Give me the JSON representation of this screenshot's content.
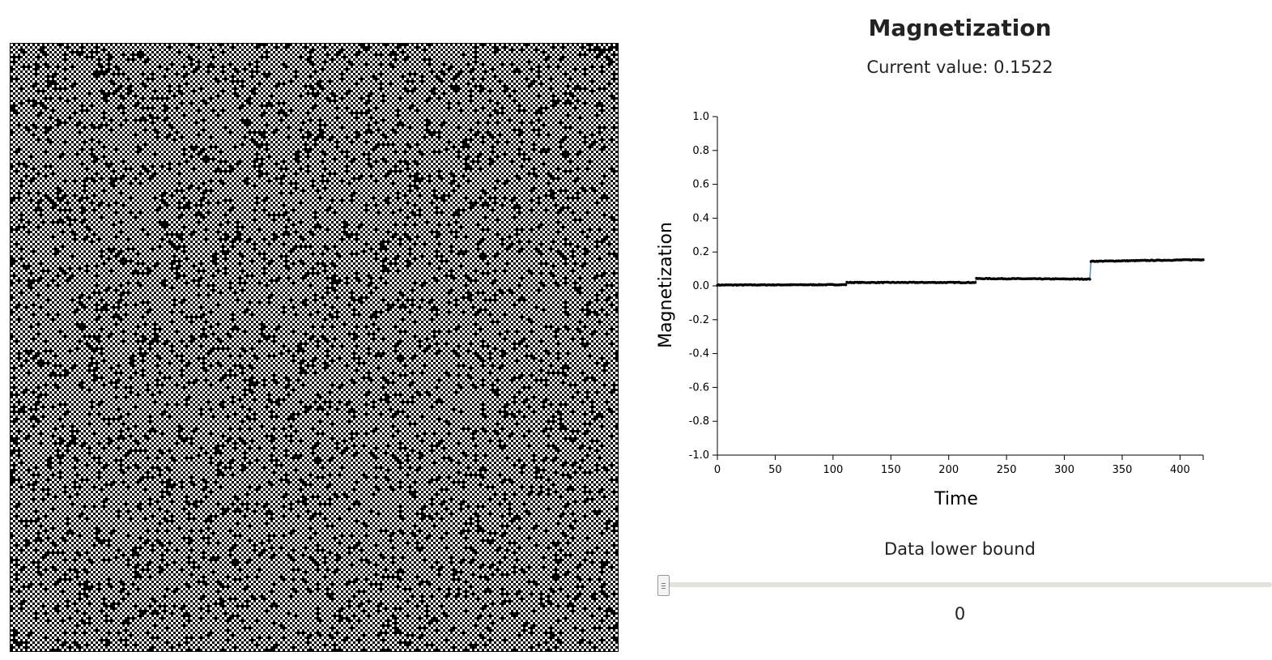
{
  "lattice": {
    "description_colors": {
      "spin_up": "#ffffff",
      "spin_down": "#000000"
    }
  },
  "chart_data": {
    "type": "line",
    "title": "Magnetization",
    "xlabel": "Time",
    "ylabel": "Magnetization",
    "xlim": [
      0,
      420
    ],
    "ylim": [
      -1.0,
      1.0
    ],
    "xticks": [
      0,
      50,
      100,
      150,
      200,
      250,
      300,
      350,
      400
    ],
    "yticks": [
      "1.0",
      "0.8",
      "0.6",
      "0.4",
      "0.2",
      "0.0",
      "-0.2",
      "-0.4",
      "-0.6",
      "-0.8",
      "-1.0"
    ],
    "grid": false,
    "series": [
      {
        "line_color": "#4a90c2",
        "marker_color": "#000000",
        "segments": [
          {
            "x_start": 0,
            "x_end": 111,
            "y_start": 0.005,
            "y_end": 0.007
          },
          {
            "x_start": 112,
            "x_end": 223,
            "y_start": 0.02,
            "y_end": 0.02
          },
          {
            "x_start": 224,
            "x_end": 322,
            "y_start": 0.043,
            "y_end": 0.04
          },
          {
            "x_start": 323,
            "x_end": 420,
            "y_start": 0.145,
            "y_end": 0.155
          }
        ]
      }
    ]
  },
  "current": {
    "label": "Current value: 0.1522"
  },
  "slider": {
    "label": "Data lower bound",
    "value": "0",
    "fraction": 0
  }
}
